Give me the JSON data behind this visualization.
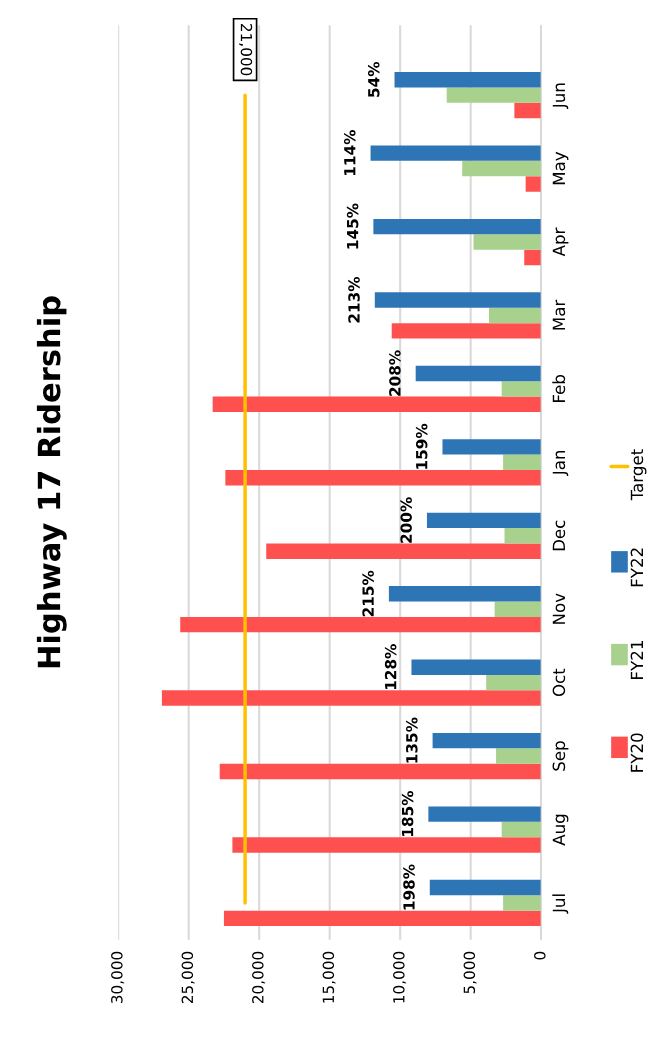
{
  "chart_data": {
    "type": "bar",
    "orientation": "horizontal",
    "title": "Highway 17 Ridership",
    "categories": [
      "Jun",
      "May",
      "Apr",
      "Mar",
      "Feb",
      "Jan",
      "Dec",
      "Nov",
      "Oct",
      "Sep",
      "Aug",
      "Jul"
    ],
    "series": [
      {
        "name": "FY20",
        "color": "#ff5050",
        "values": [
          1900,
          1100,
          1200,
          10600,
          23300,
          22400,
          19500,
          25600,
          26900,
          22800,
          21900,
          22500
        ]
      },
      {
        "name": "FY21",
        "color": "#a9d18e",
        "values": [
          6700,
          5600,
          4800,
          3700,
          2800,
          2700,
          2600,
          3300,
          3900,
          3200,
          2800,
          2700
        ]
      },
      {
        "name": "FY22",
        "color": "#2e75b6",
        "values": [
          10400,
          12100,
          11900,
          11800,
          8900,
          7000,
          8100,
          10800,
          9200,
          7700,
          8000,
          7900
        ]
      },
      {
        "name": "Target",
        "type": "line",
        "color": "#ffc000",
        "values": [
          21000,
          21000,
          21000,
          21000,
          21000,
          21000,
          21000,
          21000,
          21000,
          21000,
          21000,
          21000
        ],
        "value_labels": [
          "21,000",
          null,
          null,
          null,
          null,
          null,
          null,
          null,
          null,
          null,
          null,
          null
        ]
      }
    ],
    "xlim": [
      30000,
      0
    ],
    "xticks": [
      {
        "value": 0,
        "label": "0"
      },
      {
        "value": 5000,
        "label": "5,000"
      },
      {
        "value": 10000,
        "label": "10,000"
      },
      {
        "value": 15000,
        "label": "15,000"
      },
      {
        "value": 20000,
        "label": "20,000"
      },
      {
        "value": 25000,
        "label": "25,000"
      },
      {
        "value": 30000,
        "label": "30,000"
      }
    ],
    "grid": "x",
    "legend": "right",
    "annotations": [
      "54%",
      "114%",
      "145%",
      "213%",
      "208%",
      "159%",
      "200%",
      "215%",
      "128%",
      "135%",
      "185%",
      "198%"
    ]
  }
}
